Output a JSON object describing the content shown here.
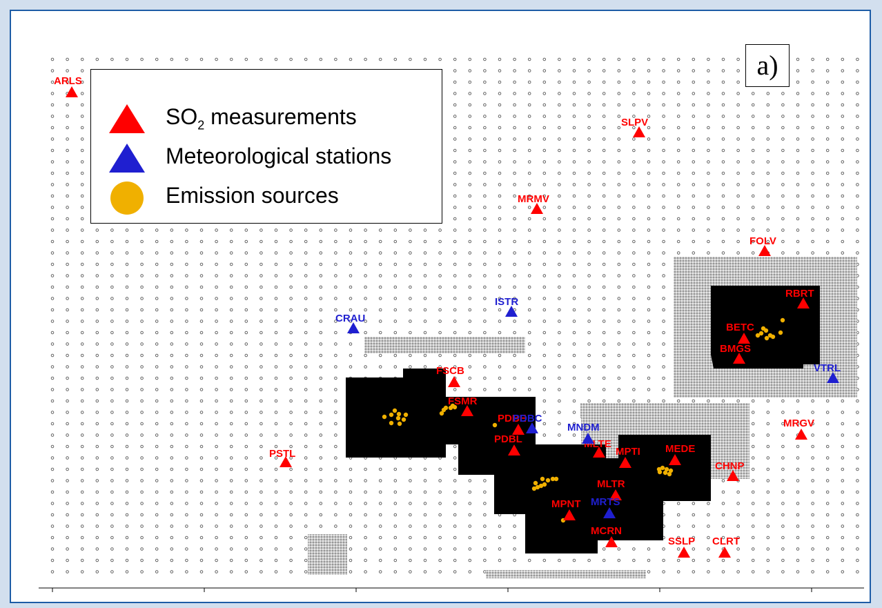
{
  "panel_label": "a)",
  "legend": {
    "so2_prefix": "SO",
    "so2_sub": "2",
    "so2_suffix": " measurements",
    "meteo": "Meteorological stations",
    "emission": "Emission sources"
  },
  "colors": {
    "so2": "#ff0000",
    "meteo": "#1f1fd0",
    "emission": "#f0b000",
    "receptor_dot": "#555555",
    "fine_grid": "#d8d8d8",
    "urban": "#000000"
  },
  "so2_stations": [
    "ARLS",
    "SLPV",
    "MRMV",
    "FOLV",
    "RBRT",
    "BETC",
    "BMGS",
    "FSCB",
    "FSMR",
    "PDBE",
    "PDBL",
    "PSTL",
    "MPTI",
    "MEDE",
    "MRGV",
    "CHNP",
    "MLTR",
    "MPNT",
    "MCRN",
    "SSLP",
    "CLRT",
    "MLTE"
  ],
  "meteo_stations": [
    "CRAU",
    "ISTR",
    "PDBC",
    "MNDM",
    "MRTS",
    "VTRL"
  ]
}
